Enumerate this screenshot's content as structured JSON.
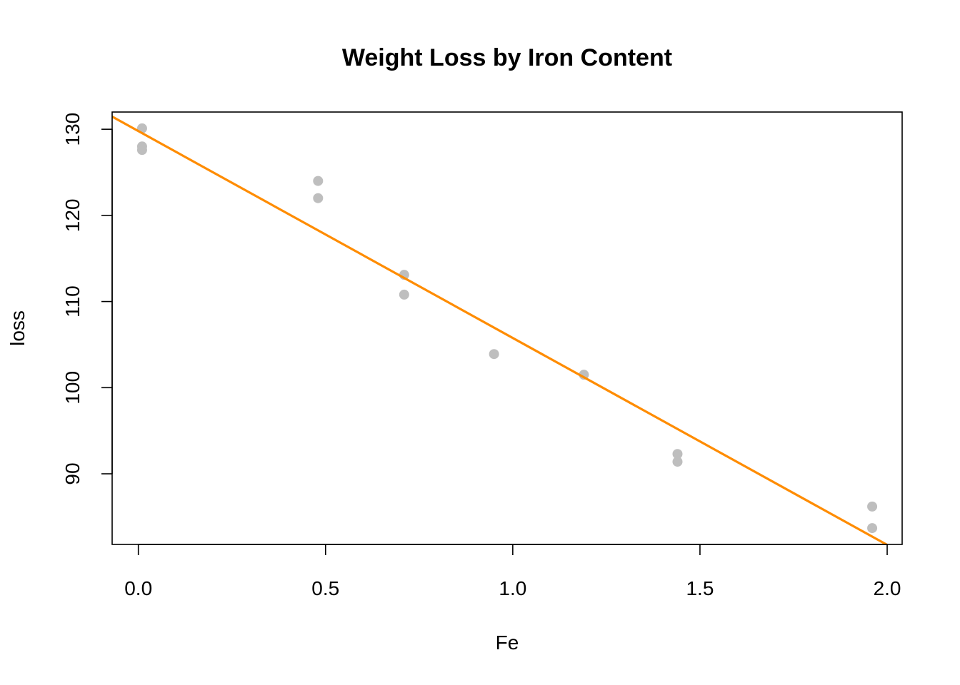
{
  "chart_data": {
    "type": "scatter",
    "title": "Weight Loss by Iron Content",
    "xlabel": "Fe",
    "ylabel": "loss",
    "xlim": [
      -0.07,
      2.04
    ],
    "ylim": [
      81.8,
      132.0
    ],
    "x_ticks": [
      0.0,
      0.5,
      1.0,
      1.5,
      2.0
    ],
    "x_tick_labels": [
      "0.0",
      "0.5",
      "1.0",
      "1.5",
      "2.0"
    ],
    "y_ticks": [
      90,
      100,
      110,
      120,
      130
    ],
    "y_tick_labels": [
      "90",
      "100",
      "110",
      "120",
      "130"
    ],
    "grid": false,
    "points": [
      {
        "x": 0.01,
        "y": 130.1
      },
      {
        "x": 0.01,
        "y": 128.0
      },
      {
        "x": 0.01,
        "y": 127.6
      },
      {
        "x": 0.48,
        "y": 124.0
      },
      {
        "x": 0.48,
        "y": 122.0
      },
      {
        "x": 0.71,
        "y": 113.1
      },
      {
        "x": 0.71,
        "y": 110.8
      },
      {
        "x": 0.95,
        "y": 103.9
      },
      {
        "x": 1.19,
        "y": 101.5
      },
      {
        "x": 1.44,
        "y": 92.3
      },
      {
        "x": 1.44,
        "y": 91.4
      },
      {
        "x": 1.96,
        "y": 86.2
      },
      {
        "x": 1.96,
        "y": 83.7
      }
    ],
    "point_color": "#bebebe",
    "fit_line": {
      "intercept": 129.79,
      "slope": -24.02,
      "color": "#ff8c00"
    }
  }
}
